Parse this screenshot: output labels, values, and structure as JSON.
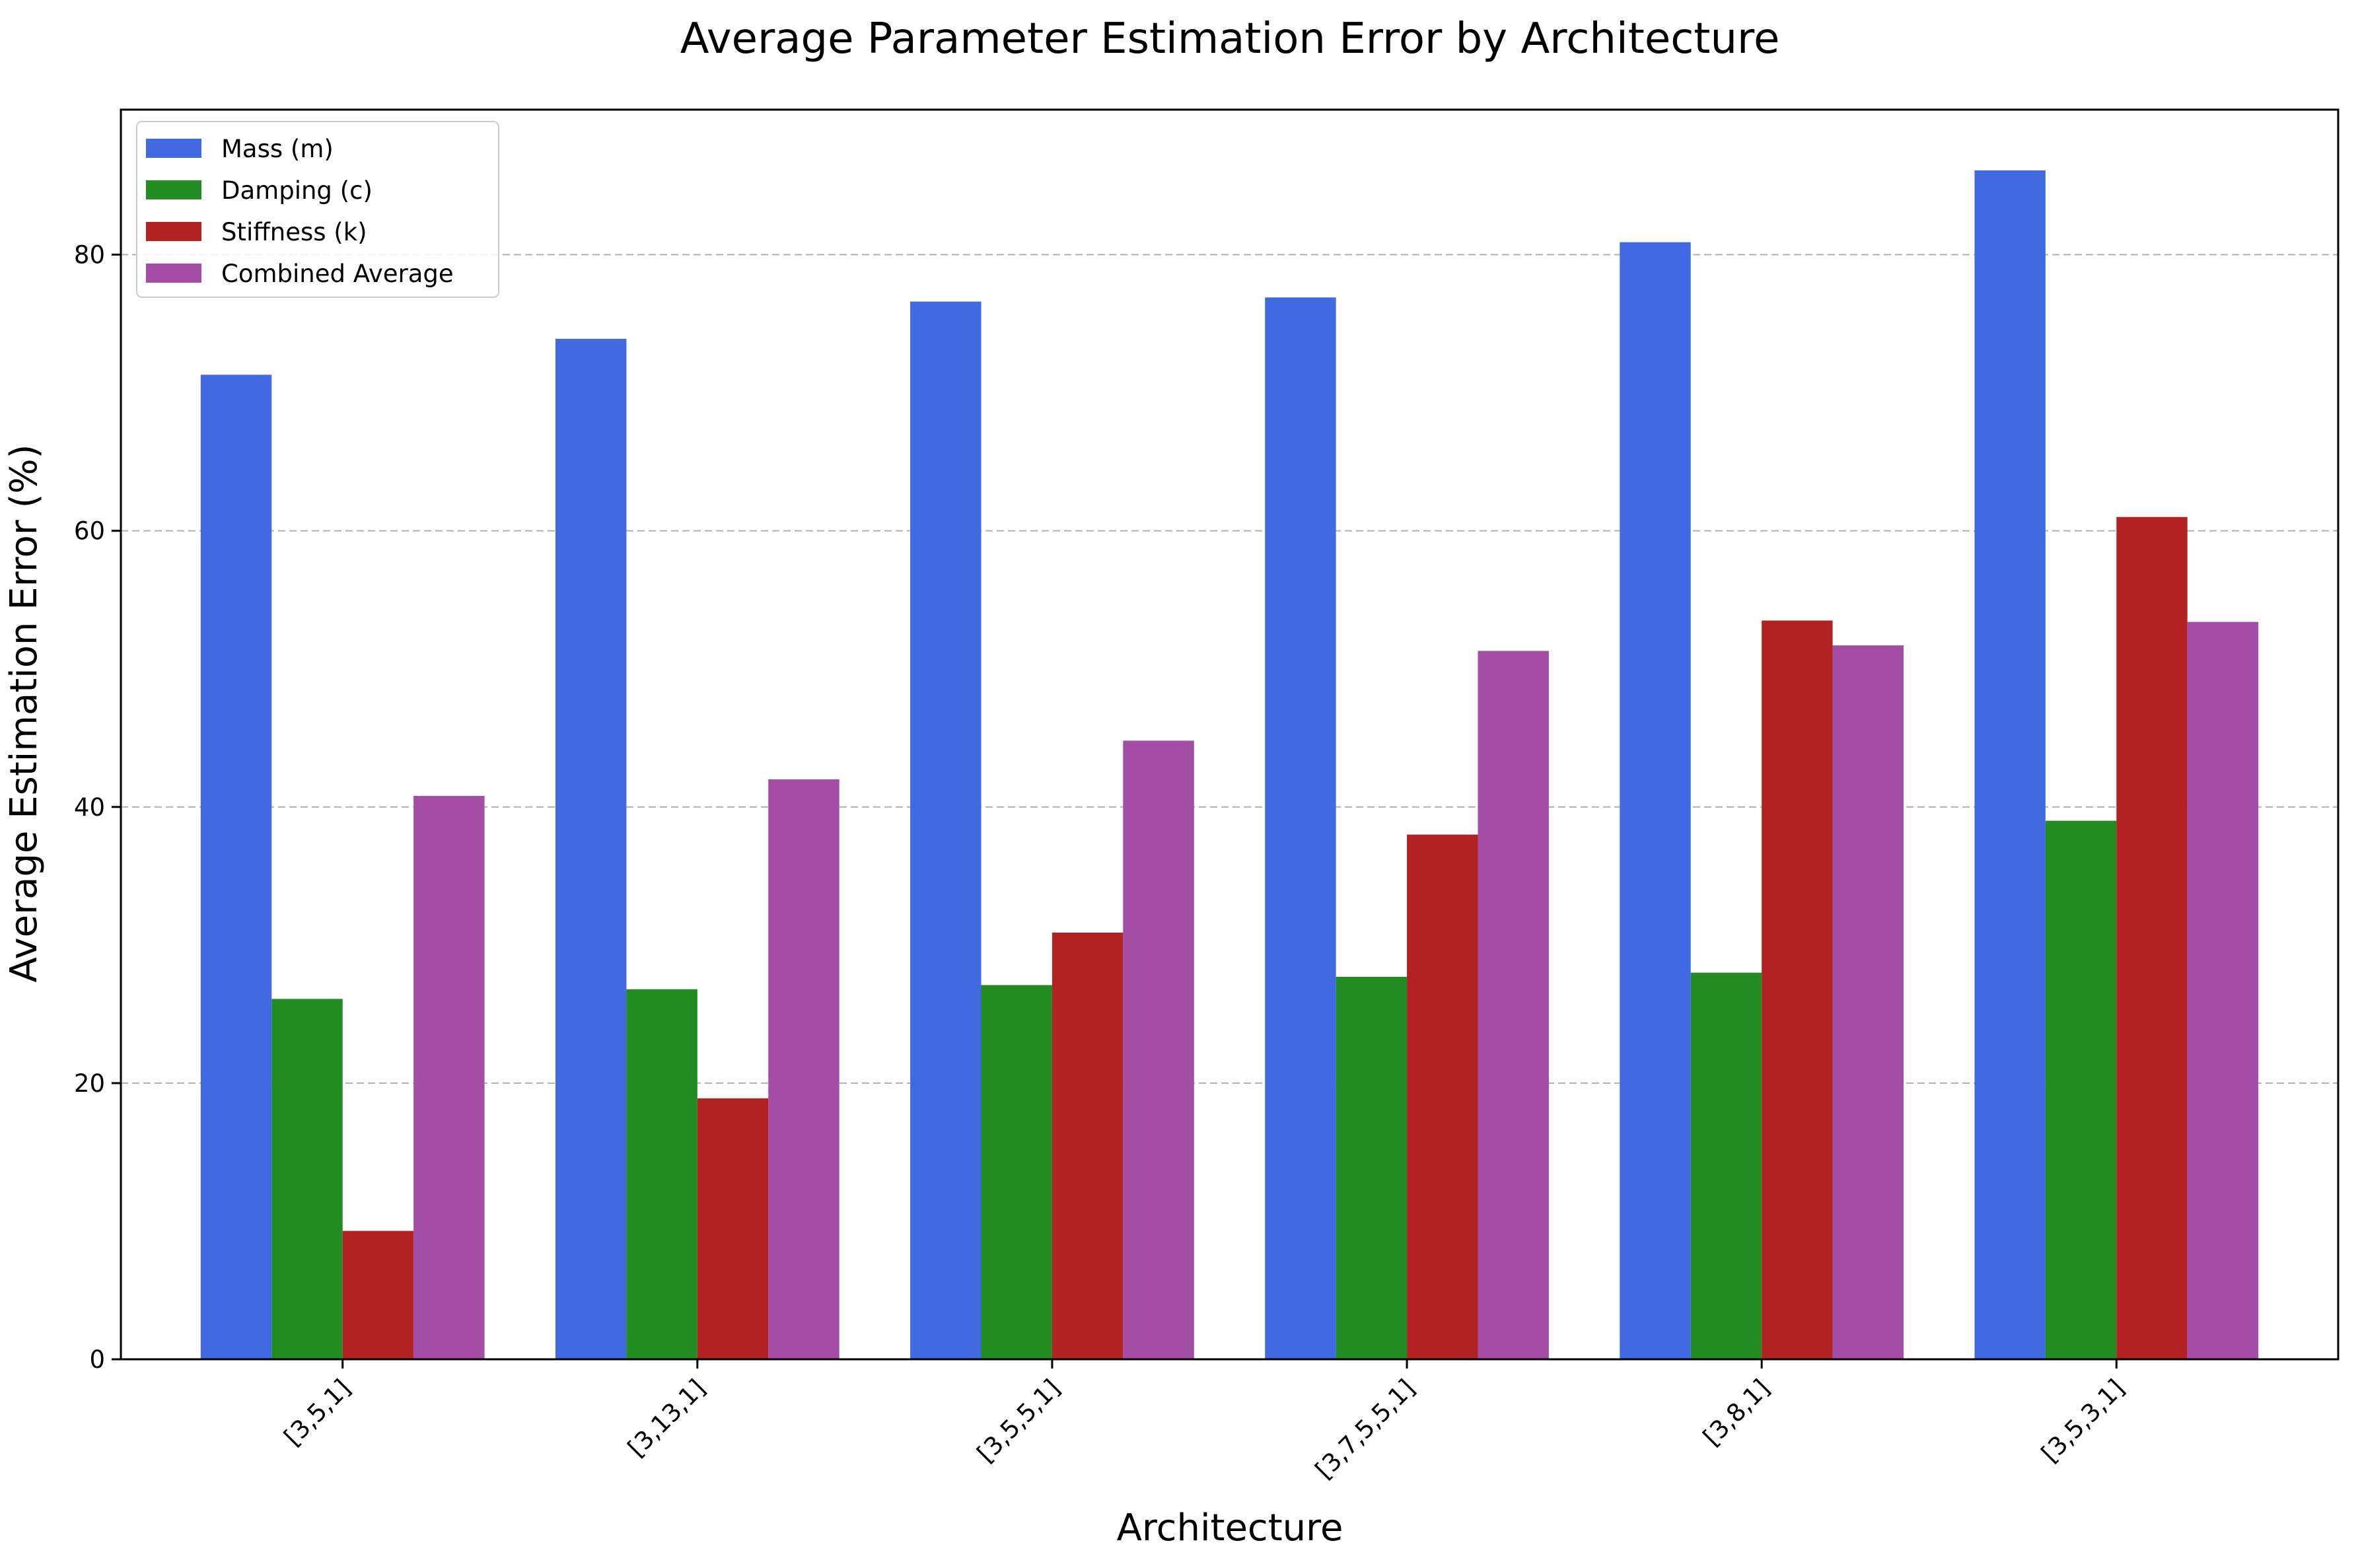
{
  "chart_data": {
    "type": "bar",
    "title": "Average Parameter Estimation Error by Architecture",
    "xlabel": "Architecture",
    "ylabel": "Average Estimation Error (%)",
    "categories": [
      "[3,5,1]",
      "[3,13,1]",
      "[3,5,5,1]",
      "[3,7,5,5,1]",
      "[3,8,1]",
      "[3,5,3,1]"
    ],
    "series": [
      {
        "name": "Mass (m)",
        "color": "#4169E1",
        "values": [
          71.3,
          73.9,
          76.6,
          76.9,
          80.9,
          86.1
        ]
      },
      {
        "name": "Damping (c)",
        "color": "#228B22",
        "values": [
          26.1,
          26.8,
          27.1,
          27.7,
          28.0,
          39.0
        ]
      },
      {
        "name": "Stiffness (k)",
        "color": "#B22222",
        "values": [
          9.3,
          18.9,
          30.9,
          38.0,
          53.5,
          61.0
        ]
      },
      {
        "name": "Combined Average",
        "color": "#A34DA4",
        "values": [
          40.8,
          42.0,
          44.8,
          51.3,
          51.7,
          53.4
        ]
      }
    ],
    "ylim": [
      0,
      90.5
    ],
    "yticks": [
      "0",
      "20",
      "40",
      "60",
      "80"
    ],
    "grid": "y-dashed",
    "legend_position": "top-left"
  }
}
